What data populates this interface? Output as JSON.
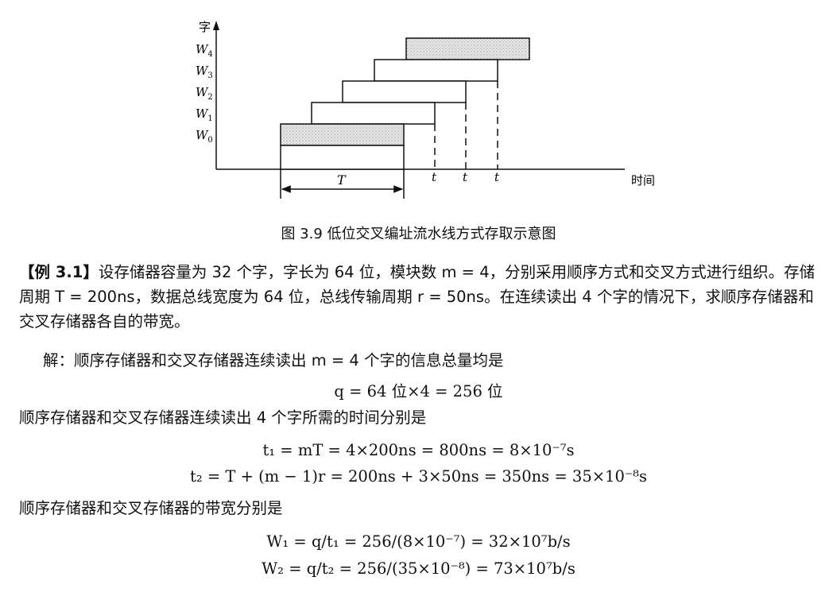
{
  "figure": {
    "y_axis_label": "字",
    "x_axis_label": "时间",
    "word_labels": [
      "W",
      "W",
      "W",
      "W",
      "W"
    ],
    "word_subscripts": [
      "0",
      "1",
      "2",
      "3",
      "4"
    ],
    "t_label": "t",
    "period_label": "T",
    "caption": "图 3.9   低位交叉编址流水线方式存取示意图"
  },
  "example": {
    "tag": "【例 3.1】",
    "para1": "设存储器容量为 32 个字，字长为 64 位，模块数 m = 4，分别采用顺序方式和交叉方式进行组织。存储周期 T = 200ns，数据总线宽度为 64 位，总线传输周期 r = 50ns。在连续读出 4 个字的情况下，求顺序存储器和交叉存储器各自的带宽。",
    "para2": "解：顺序存储器和交叉存储器连续读出 m = 4 个字的信息总量均是",
    "eq_q": "q = 64 位×4 = 256 位",
    "para3": "顺序存储器和交叉存储器连续读出 4 个字所需的时间分别是",
    "eq_t1": "t₁ = mT = 4×200ns = 800ns = 8×10⁻⁷s",
    "eq_t2": "t₂ = T + (m − 1)r = 200ns + 3×50ns = 350ns = 35×10⁻⁸s",
    "para4": "顺序存储器和交叉存储器的带宽分别是",
    "eq_w1": "W₁ = q/t₁ = 256/(8×10⁻⁷) = 32×10⁷b/s",
    "eq_w2": "W₂ = q/t₂ = 256/(35×10⁻⁸) = 73×10⁷b/s"
  }
}
